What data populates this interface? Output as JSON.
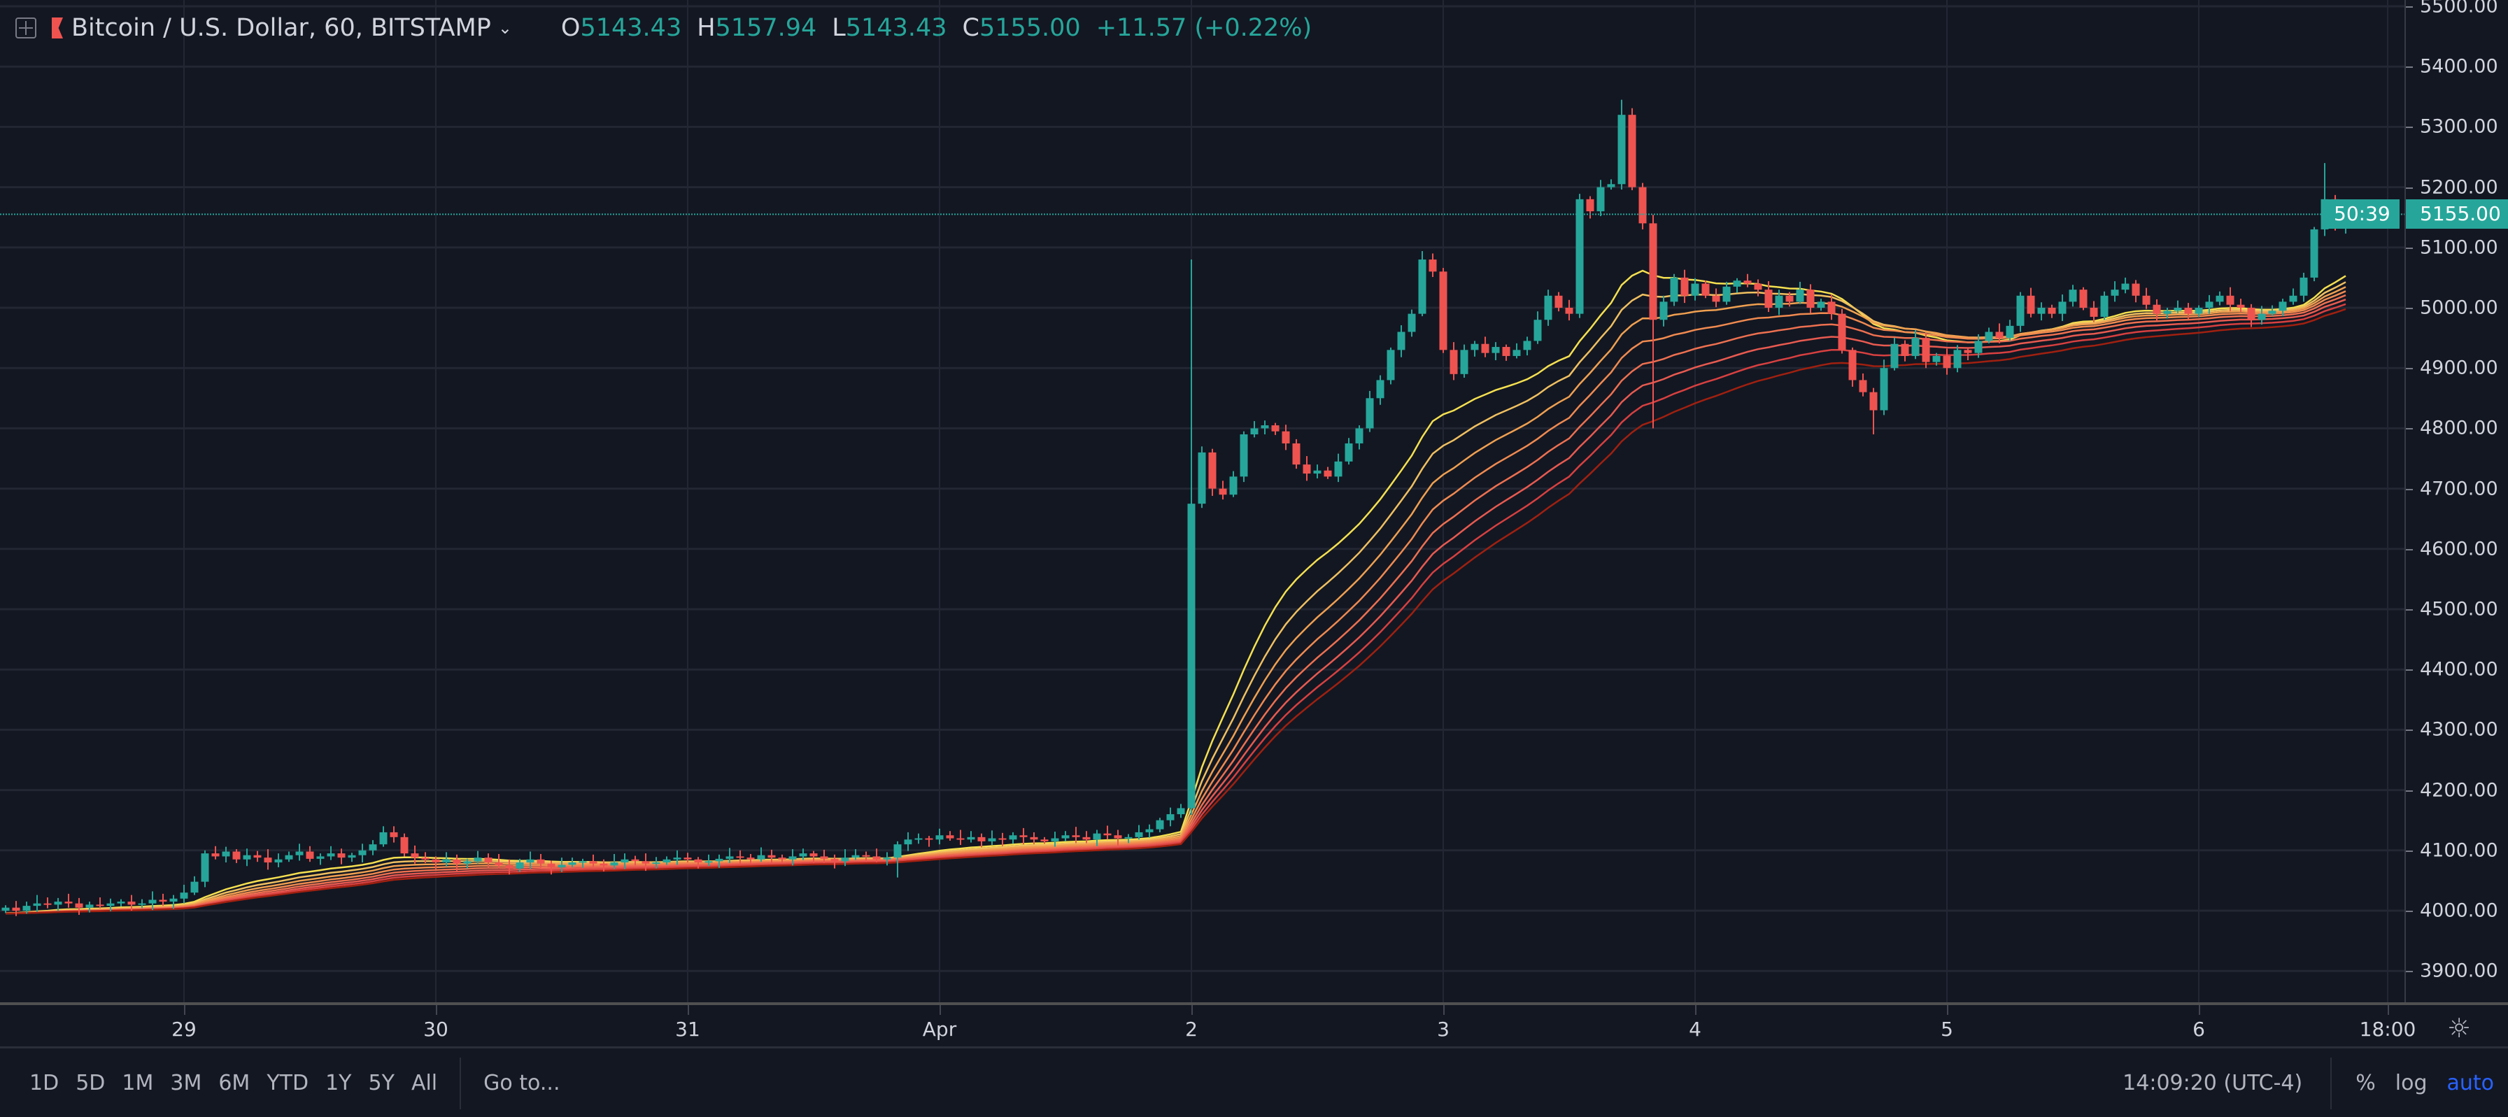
{
  "header": {
    "symbol_title": "Bitcoin / U.S. Dollar, 60, BITSTAMP",
    "o_label": "O",
    "o": "5143.43",
    "h_label": "H",
    "h": "5157.94",
    "l_label": "L",
    "l": "5143.43",
    "c_label": "C",
    "c": "5155.00",
    "change": "+11.57 (+0.22%)"
  },
  "price_axis": {
    "ticks": [
      "3900.00",
      "4000.00",
      "4100.00",
      "4200.00",
      "4300.00",
      "4400.00",
      "4500.00",
      "4600.00",
      "4700.00",
      "4800.00",
      "4900.00",
      "5000.00",
      "5100.00",
      "5200.00",
      "5300.00",
      "5400.00",
      "5500.00"
    ],
    "last_price": "5155.00",
    "countdown": "50:39"
  },
  "time_axis": {
    "labels": [
      {
        "label": "29",
        "time": "Mar 29 00:00"
      },
      {
        "label": "30",
        "time": "Mar 30 00:00"
      },
      {
        "label": "31",
        "time": "Mar 31 00:00"
      },
      {
        "label": "Apr",
        "time": "Apr 1 00:00"
      },
      {
        "label": "2",
        "time": "Apr 2 00:00"
      },
      {
        "label": "3",
        "time": "Apr 3 00:00"
      },
      {
        "label": "4",
        "time": "Apr 4 00:00"
      },
      {
        "label": "5",
        "time": "Apr 5 00:00"
      },
      {
        "label": "6",
        "time": "Apr 6 00:00"
      },
      {
        "label": "18:00",
        "time": "Apr 6 18:00"
      }
    ],
    "settings_icon": "gear-icon"
  },
  "toolbar": {
    "ranges": [
      "1D",
      "5D",
      "1M",
      "3M",
      "6M",
      "YTD",
      "1Y",
      "5Y",
      "All"
    ],
    "goto": "Go to...",
    "clock": "14:09:20 (UTC-4)",
    "percent": "%",
    "log": "log",
    "auto": "auto"
  },
  "colors": {
    "background": "#131722",
    "grid": "#1e222d",
    "up": "#26a69a",
    "down": "#ef5350",
    "accent_blue": "#2962ff",
    "ribbon": [
      "#f5e050",
      "#f0c060",
      "#f0a050",
      "#f08a50",
      "#ee7050",
      "#e85a50",
      "#d84040",
      "#a02010"
    ]
  },
  "chart_data": {
    "type": "candlestick",
    "symbol": "Bitcoin / U.S. Dollar",
    "interval": "60",
    "start": "Mar 28 07:00",
    "ylim": [
      3860,
      5520
    ],
    "first_open": 4000,
    "closes": [
      4005,
      4000,
      4008,
      4012,
      4010,
      4015,
      4012,
      4005,
      4010,
      4008,
      4012,
      4015,
      4010,
      4012,
      4018,
      4015,
      4020,
      4030,
      4048,
      4095,
      4090,
      4098,
      4085,
      4092,
      4088,
      4080,
      4085,
      4092,
      4098,
      4086,
      4090,
      4095,
      4088,
      4092,
      4100,
      4110,
      4130,
      4122,
      4095,
      4088,
      4085,
      4080,
      4085,
      4078,
      4082,
      4088,
      4080,
      4075,
      4070,
      4080,
      4085,
      4078,
      4072,
      4076,
      4080,
      4082,
      4078,
      4075,
      4080,
      4085,
      4082,
      4078,
      4080,
      4085,
      4088,
      4085,
      4080,
      4082,
      4086,
      4090,
      4088,
      4085,
      4092,
      4088,
      4085,
      4090,
      4095,
      4090,
      4086,
      4082,
      4088,
      4092,
      4090,
      4085,
      4088,
      4110,
      4118,
      4120,
      4118,
      4125,
      4120,
      4118,
      4122,
      4115,
      4120,
      4118,
      4125,
      4122,
      4118,
      4115,
      4120,
      4125,
      4122,
      4118,
      4128,
      4125,
      4120,
      4122,
      4130,
      4135,
      4150,
      4160,
      4170,
      4675,
      4760,
      4700,
      4690,
      4720,
      4790,
      4800,
      4805,
      4795,
      4775,
      4740,
      4725,
      4730,
      4720,
      4745,
      4775,
      4800,
      4850,
      4880,
      4930,
      4960,
      4990,
      5080,
      5060,
      4930,
      4890,
      4930,
      4940,
      4925,
      4935,
      4920,
      4930,
      4945,
      4980,
      5020,
      5000,
      4990,
      5180,
      5160,
      5200,
      5205,
      5320,
      5200,
      5140,
      4980,
      5010,
      5050,
      5020,
      5040,
      5020,
      5010,
      5035,
      5045,
      5040,
      5030,
      5000,
      5020,
      5010,
      5030,
      5000,
      5010,
      4990,
      4930,
      4880,
      4860,
      4830,
      4900,
      4940,
      4920,
      4950,
      4910,
      4920,
      4900,
      4930,
      4925,
      4945,
      4960,
      4950,
      4970,
      5020,
      4990,
      5000,
      4990,
      5010,
      5030,
      5000,
      4985,
      5020,
      5030,
      5040,
      5020,
      5005,
      4990,
      4995,
      5000,
      4990,
      5000,
      5010,
      5020,
      5005,
      5000,
      4980,
      4990,
      4995,
      5010,
      5020,
      5050,
      5130,
      5180,
      5135,
      5155
    ],
    "wick_extremes": [
      {
        "time": "Mar 29 19:00",
        "high": 4140
      },
      {
        "time": "Mar 31 20:00",
        "low": 4055
      },
      {
        "time": "Apr 2 00:00",
        "high": 5080
      },
      {
        "time": "Apr 3 17:00",
        "high": 5345
      },
      {
        "time": "Apr 3 20:00",
        "low": 4800
      },
      {
        "time": "Apr 4 17:00",
        "low": 4790
      },
      {
        "time": "Apr 6 12:00",
        "high": 5240
      }
    ],
    "indicator": "EMA ribbon",
    "ema_periods": [
      20,
      25,
      30,
      35,
      40,
      45,
      50,
      55
    ],
    "grid": true,
    "last_price_line": 5155
  }
}
